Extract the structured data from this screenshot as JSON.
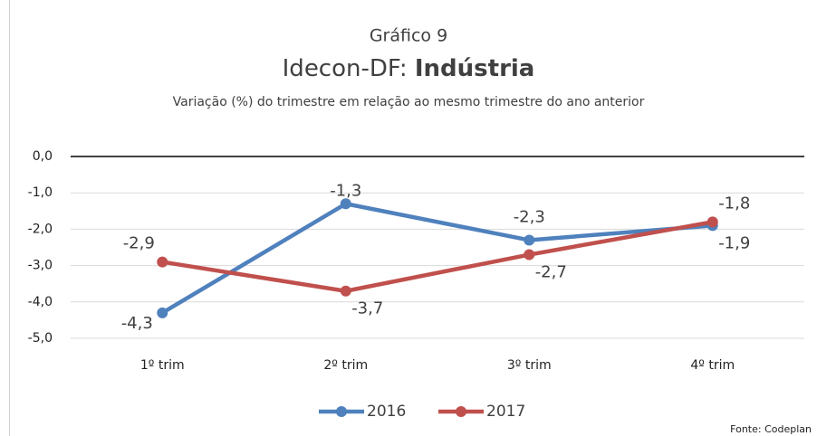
{
  "chart_data": {
    "type": "line",
    "title": "Gráfico 9",
    "title2_prefix": "Idecon-DF: ",
    "title2_bold": "Indústria",
    "subtitle": "Variação (%) do trimestre em relação ao mesmo trimestre do ano anterior",
    "source": "Fonte: Codeplan",
    "categories": [
      "1º trim",
      "2º trim",
      "3º trim",
      "4º trim"
    ],
    "series": [
      {
        "name": "2016",
        "color": "#4f81bd",
        "values": [
          -4.3,
          -1.3,
          -2.3,
          -1.9
        ],
        "value_labels": [
          "-4,3",
          "-1,3",
          "-2,3",
          "-1,9"
        ]
      },
      {
        "name": "2017",
        "color": "#c0504d",
        "values": [
          -2.9,
          -3.7,
          -2.7,
          -1.8
        ],
        "value_labels": [
          "-2,9",
          "-3,7",
          "-2,7",
          "-1,8"
        ]
      }
    ],
    "ylim": [
      -5,
      0
    ],
    "yticks": [
      {
        "value": 0,
        "label": "0,0"
      },
      {
        "value": -1,
        "label": "-1,0"
      },
      {
        "value": -2,
        "label": "-2,0"
      },
      {
        "value": -3,
        "label": "-3,0"
      },
      {
        "value": -4,
        "label": "-4,0"
      },
      {
        "value": -5,
        "label": "-5,0"
      }
    ],
    "grid": true,
    "legend": "bottom"
  }
}
